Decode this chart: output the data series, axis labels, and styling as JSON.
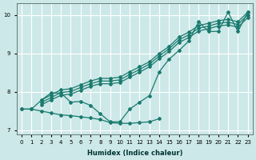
{
  "xlabel": "Humidex (Indice chaleur)",
  "ylabel": "",
  "xlim": [
    -0.5,
    23.5
  ],
  "ylim": [
    6.9,
    10.3
  ],
  "yticks": [
    7,
    8,
    9,
    10
  ],
  "xticks": [
    0,
    1,
    2,
    3,
    4,
    5,
    6,
    7,
    8,
    9,
    10,
    11,
    12,
    13,
    14,
    15,
    16,
    17,
    18,
    19,
    20,
    21,
    22,
    23
  ],
  "bg_color": "#cde8e8",
  "grid_color": "#ffffff",
  "line_color": "#1a7a6e",
  "figsize": [
    3.2,
    2.0
  ],
  "dpi": 100,
  "line_flat_x": [
    0,
    1,
    2,
    3,
    4,
    5,
    6,
    7,
    8,
    9,
    10,
    11,
    12,
    13,
    14
  ],
  "line_flat_y": [
    7.55,
    7.55,
    7.5,
    7.45,
    7.4,
    7.38,
    7.35,
    7.32,
    7.28,
    7.2,
    7.18,
    7.18,
    7.2,
    7.22,
    7.3
  ],
  "line_jagged_x": [
    0,
    1,
    2,
    3,
    4,
    5,
    6,
    7,
    8,
    9,
    10,
    11,
    12,
    13,
    14,
    15,
    16,
    17,
    18,
    19,
    20,
    21,
    22,
    23
  ],
  "line_jagged_y": [
    7.55,
    7.55,
    7.78,
    7.97,
    7.97,
    7.73,
    7.75,
    7.65,
    7.43,
    7.22,
    7.22,
    7.55,
    7.73,
    7.9,
    8.52,
    8.85,
    9.07,
    9.32,
    9.82,
    9.57,
    9.57,
    10.07,
    9.57,
    10.07
  ],
  "line_reg1_x": [
    2,
    3,
    4,
    5,
    6,
    7,
    8,
    9,
    10,
    11,
    12,
    13,
    14,
    15,
    16,
    17,
    18,
    19,
    20,
    21,
    22,
    23
  ],
  "line_reg1_y": [
    7.78,
    7.92,
    8.05,
    8.08,
    8.18,
    8.28,
    8.35,
    8.35,
    8.38,
    8.52,
    8.65,
    8.78,
    9.0,
    9.18,
    9.42,
    9.55,
    9.72,
    9.78,
    9.85,
    9.88,
    9.82,
    10.07
  ],
  "line_reg2_x": [
    2,
    3,
    4,
    5,
    6,
    7,
    8,
    9,
    10,
    11,
    12,
    13,
    14,
    15,
    16,
    17,
    18,
    19,
    20,
    21,
    22,
    23
  ],
  "line_reg2_y": [
    7.72,
    7.85,
    7.98,
    8.01,
    8.11,
    8.21,
    8.28,
    8.28,
    8.31,
    8.45,
    8.58,
    8.72,
    8.93,
    9.12,
    9.35,
    9.48,
    9.65,
    9.71,
    9.78,
    9.81,
    9.75,
    10.0
  ],
  "line_reg3_x": [
    2,
    3,
    4,
    5,
    6,
    7,
    8,
    9,
    10,
    11,
    12,
    13,
    14,
    15,
    16,
    17,
    18,
    19,
    20,
    21,
    22,
    23
  ],
  "line_reg3_y": [
    7.66,
    7.79,
    7.91,
    7.94,
    8.04,
    8.14,
    8.21,
    8.21,
    8.24,
    8.38,
    8.51,
    8.65,
    8.86,
    9.05,
    9.28,
    9.41,
    9.58,
    9.64,
    9.71,
    9.74,
    9.68,
    9.93
  ]
}
